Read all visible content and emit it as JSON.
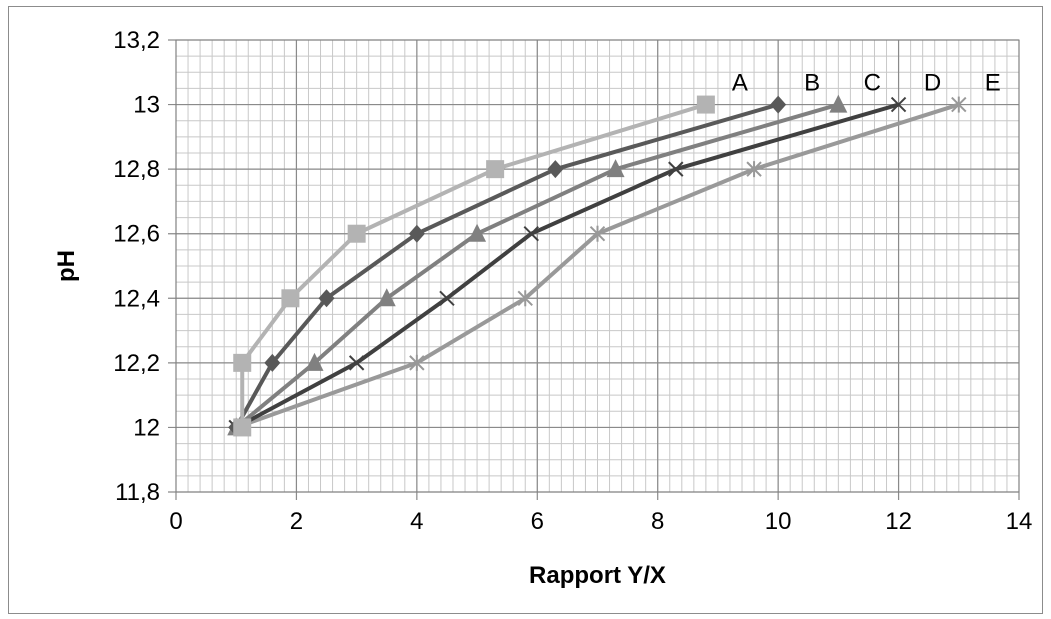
{
  "chart_data": {
    "type": "line",
    "title": "",
    "xlabel": "Rapport Y/X",
    "ylabel": "pH",
    "xlim": [
      0,
      14
    ],
    "ylim": [
      11.8,
      13.2
    ],
    "x_ticks": [
      "0",
      "2",
      "4",
      "6",
      "8",
      "10",
      "12",
      "14"
    ],
    "y_ticks": [
      "11,8",
      "12",
      "12,2",
      "12,4",
      "12,6",
      "12,8",
      "13",
      "13,2"
    ],
    "grid": "major and minor",
    "legend": "none; series labeled at line ends",
    "series": [
      {
        "name": "A",
        "marker": "square",
        "color": "#b3b3b3",
        "points": [
          [
            1.1,
            12.0
          ],
          [
            1.1,
            12.2
          ],
          [
            1.9,
            12.4
          ],
          [
            3.0,
            12.6
          ],
          [
            5.3,
            12.8
          ],
          [
            8.8,
            13.0
          ]
        ]
      },
      {
        "name": "B",
        "marker": "diamond",
        "color": "#595959",
        "points": [
          [
            1.0,
            12.0
          ],
          [
            1.6,
            12.2
          ],
          [
            2.5,
            12.4
          ],
          [
            4.0,
            12.6
          ],
          [
            6.3,
            12.8
          ],
          [
            10.0,
            13.0
          ]
        ]
      },
      {
        "name": "C",
        "marker": "triangle",
        "color": "#808080",
        "points": [
          [
            1.0,
            12.0
          ],
          [
            2.3,
            12.2
          ],
          [
            3.5,
            12.4
          ],
          [
            5.0,
            12.6
          ],
          [
            7.3,
            12.8
          ],
          [
            11.0,
            13.0
          ]
        ]
      },
      {
        "name": "D",
        "marker": "x",
        "color": "#404040",
        "points": [
          [
            1.0,
            12.0
          ],
          [
            3.0,
            12.2
          ],
          [
            4.5,
            12.4
          ],
          [
            5.9,
            12.6
          ],
          [
            8.3,
            12.8
          ],
          [
            12.0,
            13.0
          ]
        ]
      },
      {
        "name": "E",
        "marker": "star",
        "color": "#999999",
        "points": [
          [
            1.0,
            12.0
          ],
          [
            4.0,
            12.2
          ],
          [
            5.8,
            12.4
          ],
          [
            7.0,
            12.6
          ],
          [
            9.6,
            12.8
          ],
          [
            13.0,
            13.0
          ]
        ]
      }
    ]
  }
}
